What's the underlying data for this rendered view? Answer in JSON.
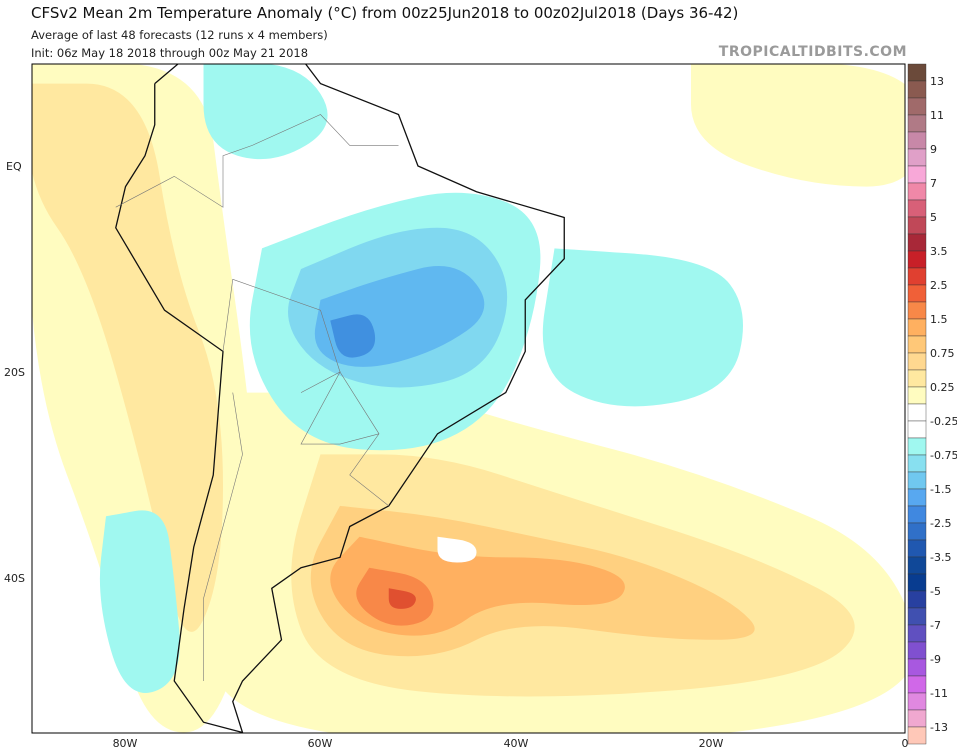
{
  "header": {
    "title": "CFSv2 Mean 2m Temperature Anomaly (°C) from 00z25Jun2018 to 00z02Jul2018 (Days 36-42)",
    "subtitle": "Average of last 48 forecasts (12 runs x 4 members)",
    "init": "Init: 06z May 18 2018 through 00z May 21 2018",
    "brand": "TROPICALTIDBITS.COM"
  },
  "map": {
    "lat_labels": [
      "EQ",
      "20S",
      "40S"
    ],
    "lon_labels": [
      "80W",
      "60W",
      "40W",
      "20W",
      "0"
    ]
  },
  "colorbar": {
    "labels": [
      "13",
      "11",
      "9",
      "7",
      "5",
      "3.5",
      "2.5",
      "1.5",
      "0.75",
      "0.25",
      "-0.25",
      "-0.75",
      "-1.5",
      "-2.5",
      "-3.5",
      "-5",
      "-7",
      "-9",
      "-11",
      "-13"
    ],
    "colors": [
      "#6b4a3a",
      "#8a5a50",
      "#a06a6a",
      "#b07a86",
      "#c888a8",
      "#e0a0c8",
      "#f8a8d8",
      "#f088a8",
      "#d86078",
      "#c04858",
      "#a82838",
      "#c82028",
      "#e04030",
      "#f06038",
      "#f88848",
      "#ffb060",
      "#ffc878",
      "#ffd890",
      "#ffe8a0",
      "#fffcc0",
      "#ffffff",
      "#ffffff",
      "#a0f8f0",
      "#88e0f0",
      "#70c8f0",
      "#58a8f0",
      "#4088e0",
      "#3070c8",
      "#2058b0",
      "#104898",
      "#083c90",
      "#2840a0",
      "#4050b0",
      "#6050c0",
      "#8050d0",
      "#a858e0",
      "#d068e8",
      "#e088e0",
      "#f0a8d0",
      "#ffc8b8"
    ]
  }
}
